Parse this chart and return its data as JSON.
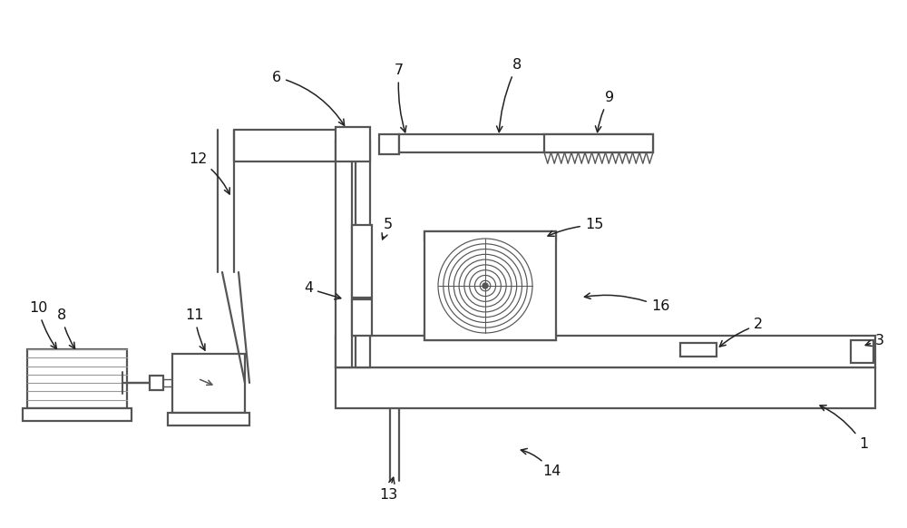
{
  "fig_w": 10.0,
  "fig_h": 5.82,
  "dpi": 100,
  "lc": "#555555",
  "lw": 1.6,
  "gray": "#999999",
  "dark_gray": "#777777"
}
